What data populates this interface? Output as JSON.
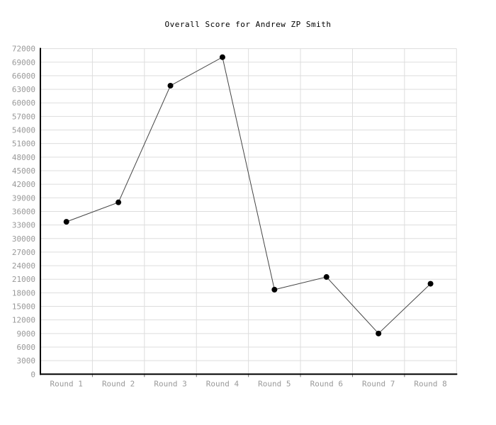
{
  "page": {
    "background": "#ffffff"
  },
  "title": "Overall Score for Andrew ZP Smith",
  "chart_data": {
    "type": "line",
    "title": "Overall Score for Andrew ZP Smith",
    "categories": [
      "Round 1",
      "Round 2",
      "Round 3",
      "Round 4",
      "Round 5",
      "Round 6",
      "Round 7",
      "Round 8"
    ],
    "values": [
      33700,
      38000,
      63800,
      70100,
      18700,
      21500,
      9000,
      20000
    ],
    "xlabel": "",
    "ylabel": "",
    "ylim": [
      0,
      72000
    ],
    "ytick_step": 3000,
    "ytick_labels": [
      "0",
      "3000",
      "6000",
      "9000",
      "12000",
      "15000",
      "18000",
      "21000",
      "24000",
      "27000",
      "30000",
      "33000",
      "36000",
      "39000",
      "42000",
      "45000",
      "48000",
      "51000",
      "54000",
      "57000",
      "60000",
      "63000",
      "66000",
      "69000",
      "72000"
    ],
    "grid": true,
    "legend": "none",
    "marker": "filled-circle",
    "colors": {
      "background": "#ffffff",
      "line": "#444444",
      "marker": "#000000",
      "grid": "#dddddd",
      "axis": "#000000",
      "tick_label": "#999999",
      "tick_mark": "#777777",
      "title": "#000000"
    }
  }
}
